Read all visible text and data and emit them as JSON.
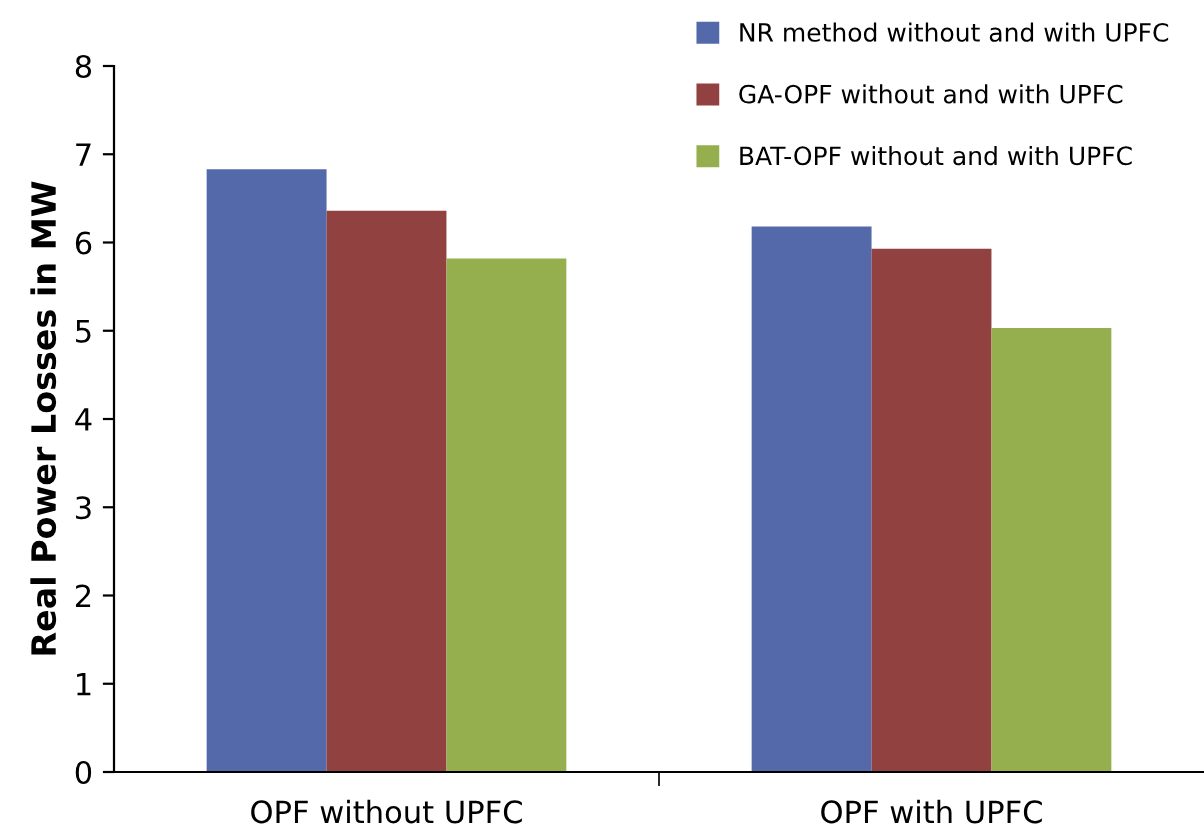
{
  "chart_data": {
    "type": "bar",
    "ylabel": "Real Power Losses in MW",
    "categories": [
      "OPF without UPFC",
      "OPF with UPFC"
    ],
    "series": [
      {
        "name": "NR method without and with UPFC",
        "color": "#5469a9",
        "values": [
          6.83,
          6.18
        ]
      },
      {
        "name": "GA-OPF without and with UPFC",
        "color": "#914140",
        "values": [
          6.36,
          5.93
        ]
      },
      {
        "name": "BAT-OPF without and with UPFC",
        "color": "#95ae4e",
        "values": [
          5.82,
          5.03
        ]
      }
    ],
    "ylim": [
      0,
      8
    ],
    "yticks": [
      0,
      1,
      2,
      3,
      4,
      5,
      6,
      7,
      8
    ],
    "grid": false,
    "legend": "top right"
  }
}
